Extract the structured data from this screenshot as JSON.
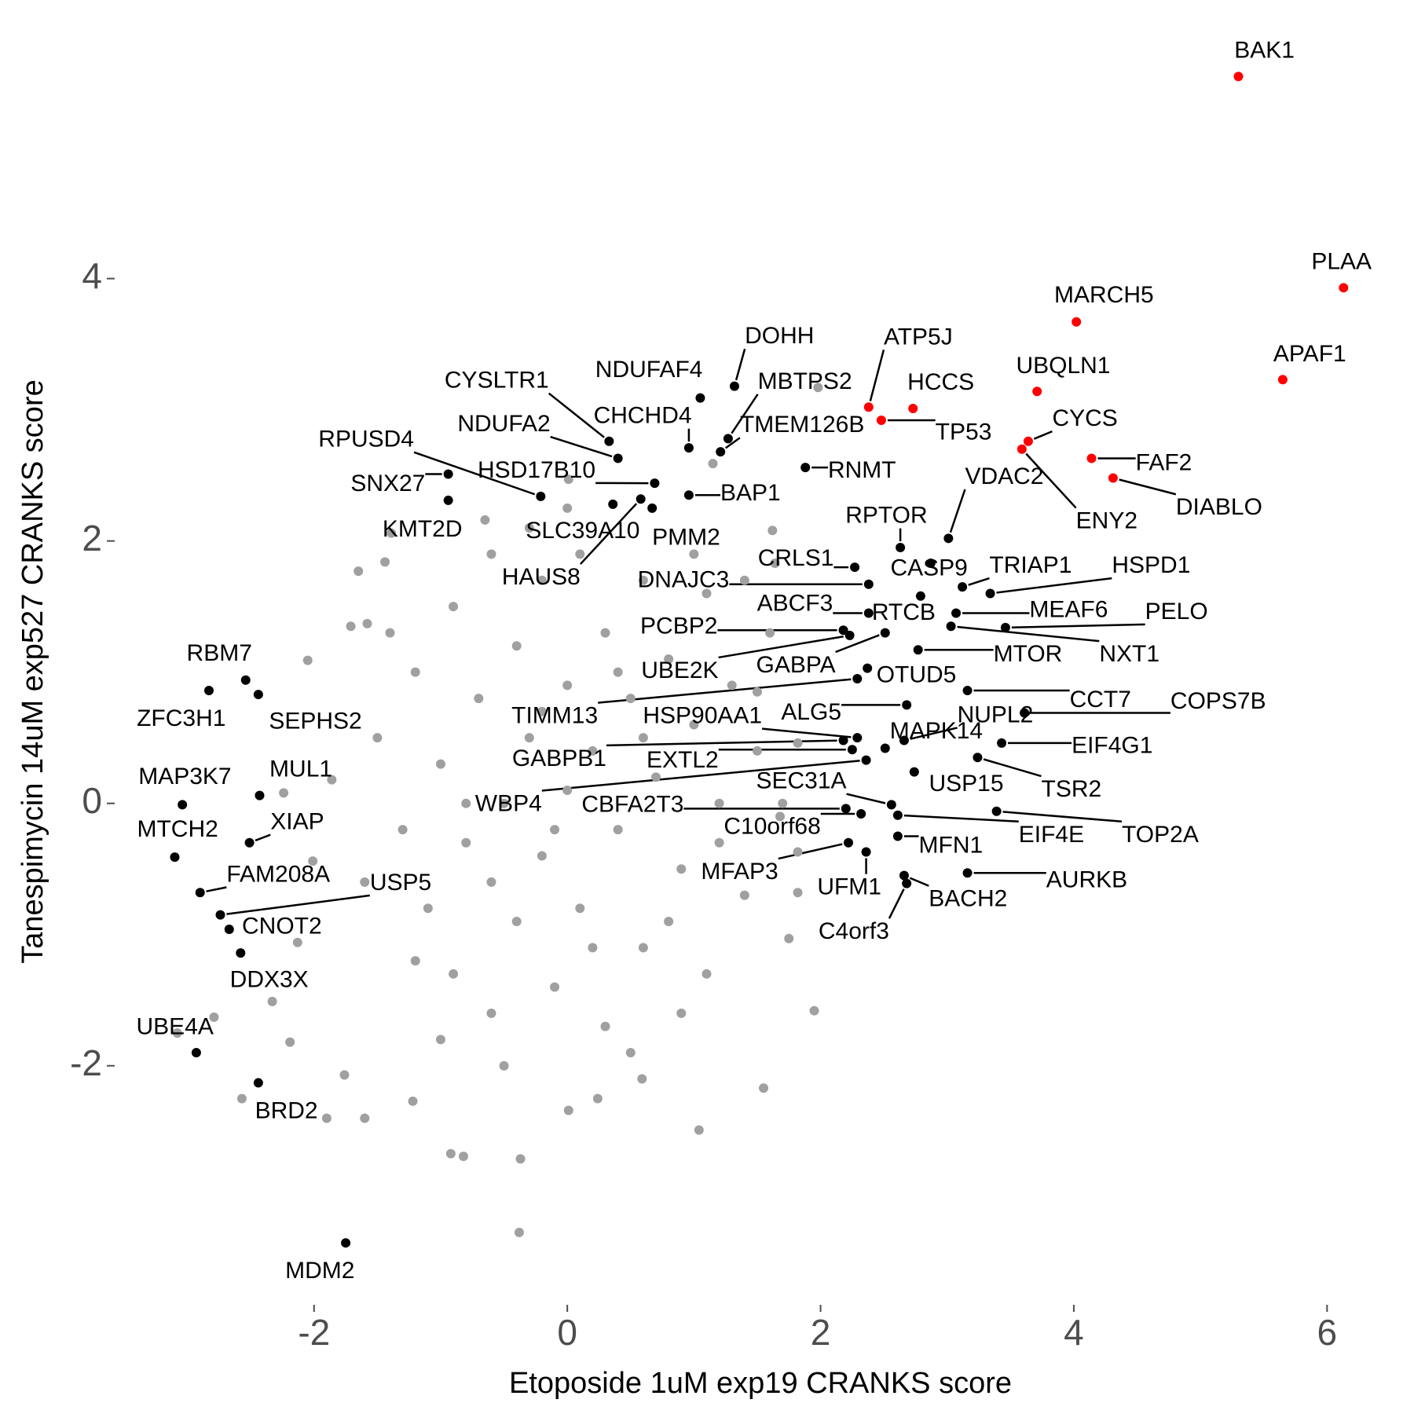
{
  "chart_data": {
    "type": "scatter",
    "xlabel": "Etoposide 1uM exp19 CRANKS score",
    "ylabel": "Tanespimycin 14uM exp527 CRANKS score",
    "xlim": [
      -3.5,
      6.55
    ],
    "ylim": [
      -3.75,
      5.8
    ],
    "xticks": [
      -2,
      0,
      2,
      4,
      6
    ],
    "yticks": [
      -2,
      0,
      2,
      4
    ],
    "series": [
      {
        "color": "#a0a0a0",
        "x": [
          1.98,
          1.15,
          0,
          -0.65,
          0.01,
          -1.39,
          -1.44,
          -1.65,
          1.62,
          1.64,
          -1.58,
          -2.05,
          -1.71,
          -1.86,
          -2.24,
          -2.01,
          -2.13,
          -2.33,
          -2.19,
          -1.76,
          -1.9,
          -1.6,
          -1.22,
          -0.92,
          -0.82,
          -0.37,
          -0.38,
          0.01,
          0.24,
          0.59,
          1.04,
          1.55,
          1.95,
          1.82,
          1.75,
          1.68,
          1.82,
          1.5,
          1.82,
          -2.57,
          -2.79,
          -3.08,
          -1.5,
          -1.3,
          -1.2,
          -1.1,
          -1.0,
          -0.9,
          -0.9,
          -0.8,
          -0.7,
          -0.6,
          -0.6,
          -0.5,
          -0.4,
          -0.4,
          -0.3,
          -0.2,
          -0.2,
          -0.1,
          0.0,
          0.0,
          0.1,
          0.1,
          0.2,
          0.3,
          0.3,
          0.4,
          0.5,
          0.6,
          0.6,
          0.7,
          0.8,
          0.9,
          1.0,
          1.1,
          1.1,
          1.2,
          1.3,
          1.4,
          1.5,
          1.6,
          -1.6,
          -1.4,
          -0.5,
          0.5,
          1.0,
          -0.3,
          1.7,
          -1.2,
          0.9,
          0.2,
          -0.8,
          0.6,
          -0.2,
          0.4,
          -0.6,
          1.2,
          0.8,
          -1.0,
          1.4,
          -0.1
        ],
        "y": [
          3.17,
          2.59,
          2.25,
          2.16,
          2.47,
          2.06,
          1.84,
          1.77,
          2.08,
          1.83,
          1.37,
          1.09,
          1.35,
          0.18,
          0.08,
          -0.44,
          -1.06,
          -1.51,
          -1.82,
          -2.07,
          -2.4,
          -2.4,
          -2.27,
          -2.67,
          -2.69,
          -2.71,
          -3.27,
          -2.34,
          -2.25,
          -2.1,
          -2.49,
          -2.17,
          -1.58,
          -0.68,
          -1.03,
          -0.1,
          0.46,
          0.85,
          -0.37,
          -2.25,
          -1.63,
          -1.75,
          0.5,
          -0.2,
          1.0,
          -0.8,
          0.3,
          1.5,
          -1.3,
          -0.3,
          0.8,
          1.9,
          -1.6,
          0.0,
          1.2,
          -0.9,
          0.5,
          1.7,
          -0.4,
          -1.4,
          0.9,
          0.1,
          1.9,
          -0.8,
          0.4,
          1.3,
          -1.7,
          -0.2,
          0.8,
          1.7,
          -1.1,
          0.2,
          1.1,
          -0.5,
          0.6,
          1.6,
          -1.3,
          0.0,
          0.9,
          -0.7,
          0.4,
          1.3,
          -0.6,
          1.3,
          -2.0,
          -1.9,
          1.9,
          2.1,
          0.0,
          -1.2,
          -1.6,
          -1.1,
          0.0,
          0.5,
          0.7,
          1.0,
          -0.6,
          -0.3,
          -0.9,
          -1.8,
          1.7,
          -0.2
        ]
      },
      {
        "color": "#000000",
        "labels": [
          "RBM7",
          "ZFC3H1",
          "SEPHS2",
          "MAP3K7",
          "MUL1",
          "MTCH2",
          "XIAP",
          "FAM208A",
          "USP5",
          "CNOT2",
          "DDX3X",
          "UBE4A",
          "BRD2",
          "MDM2",
          "SNX27",
          "KMT2D",
          "RPUSD4",
          "CYSLTR1",
          "NDUFA2",
          "HSD17B10",
          "SLC39A10",
          "HAUS8",
          "PMM2",
          "NDUFAF4",
          "CHCHD4",
          "DOHH",
          "MBTPS2",
          "TMEM126B",
          "BAP1",
          "RNMT",
          "VDAC2",
          "RPTOR",
          "CRLS1",
          "DNAJC3",
          "CASP9",
          "TRIAP1",
          "HSPD1",
          "RTCB",
          "MEAF6",
          "PELO",
          "ABCF3",
          "PCBP2",
          "UBE2K",
          "GABPA",
          "OTUD5",
          "TIMM13",
          "MTOR",
          "NXT1",
          "CCT7",
          "COPS7B",
          "ALG5",
          "HSP90AA1",
          "NUPL2",
          "MAPK14",
          "EIF4G1",
          "GABPB1",
          "EXTL2",
          "USP15",
          "TSR2",
          "WBP4",
          "SEC31A",
          "CBFA2T3",
          "C10orf68",
          "EIF4E",
          "TOP2A",
          "MFN1",
          "MFAP3",
          "UFM1",
          "BACH2",
          "AURKB",
          "C4orf3"
        ],
        "x": [
          -2.54,
          -2.83,
          -2.44,
          -3.04,
          -2.43,
          -3.1,
          -2.51,
          -2.9,
          -2.74,
          -2.67,
          -2.58,
          -2.93,
          -2.44,
          -1.75,
          -0.94,
          -0.94,
          -0.21,
          0.33,
          0.4,
          0.69,
          0.36,
          0.58,
          0.67,
          1.05,
          0.96,
          1.32,
          1.27,
          1.21,
          0.96,
          1.88,
          3.01,
          2.63,
          2.27,
          2.38,
          2.87,
          3.12,
          3.34,
          2.79,
          3.07,
          3.46,
          2.38,
          2.18,
          2.23,
          2.51,
          2.37,
          2.29,
          2.77,
          3.03,
          3.16,
          3.61,
          2.68,
          2.29,
          2.66,
          2.51,
          3.43,
          2.18,
          2.25,
          2.74,
          3.24,
          2.36,
          2.56,
          2.2,
          2.32,
          2.61,
          3.39,
          2.61,
          2.22,
          2.36,
          2.66,
          3.16,
          2.68
        ],
        "y": [
          0.94,
          0.86,
          0.83,
          -0.01,
          0.06,
          -0.41,
          -0.3,
          -0.68,
          -0.85,
          -0.96,
          -1.14,
          -1.9,
          -2.13,
          -3.35,
          2.51,
          2.31,
          2.34,
          2.76,
          2.63,
          2.44,
          2.28,
          2.32,
          2.25,
          3.09,
          2.71,
          3.18,
          2.78,
          2.68,
          2.35,
          2.56,
          2.02,
          1.95,
          1.8,
          1.67,
          1.83,
          1.65,
          1.6,
          1.58,
          1.45,
          1.34,
          1.45,
          1.32,
          1.28,
          1.3,
          1.03,
          0.95,
          1.17,
          1.35,
          0.86,
          0.69,
          0.75,
          0.5,
          0.48,
          0.42,
          0.46,
          0.48,
          0.41,
          0.24,
          0.35,
          0.33,
          -0.01,
          -0.04,
          -0.08,
          -0.09,
          -0.06,
          -0.25,
          -0.3,
          -0.37,
          -0.55,
          -0.53,
          -0.61
        ]
      },
      {
        "color": "#ff0000",
        "labels": [
          "BAK1",
          "PLAA",
          "MARCH5",
          "APAF1",
          "UBQLN1",
          "ATP5J",
          "HCCS",
          "TP53",
          "CYCS",
          "ENY2",
          "FAF2",
          "DIABLO"
        ],
        "x": [
          5.3,
          6.13,
          4.02,
          5.65,
          3.71,
          2.38,
          2.73,
          2.48,
          3.64,
          3.59,
          4.14,
          4.31
        ],
        "y": [
          5.54,
          3.93,
          3.67,
          3.23,
          3.14,
          3.02,
          3.01,
          2.92,
          2.76,
          2.7,
          2.63,
          2.48
        ]
      }
    ]
  }
}
